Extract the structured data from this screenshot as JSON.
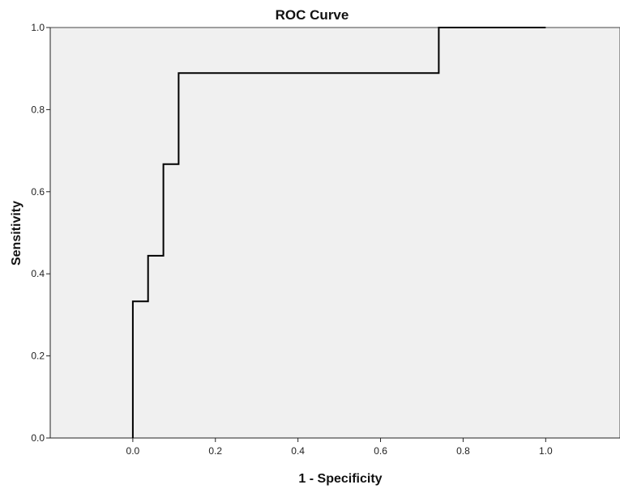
{
  "chart_data": {
    "type": "line",
    "title": "ROC Curve",
    "xlabel": "1 - Specificity",
    "ylabel": "Sensitivity",
    "xlim": [
      -0.2,
      1.18
    ],
    "ylim": [
      0.0,
      1.0
    ],
    "x_ticks": [
      0.0,
      0.2,
      0.4,
      0.6,
      0.8,
      1.0
    ],
    "x_tick_labels": [
      "0.0",
      "0.2",
      "0.4",
      "0.6",
      "0.8",
      "1.0"
    ],
    "y_ticks": [
      0.0,
      0.2,
      0.4,
      0.6,
      0.8,
      1.0
    ],
    "y_tick_labels": [
      "0.0",
      "0.2",
      "0.4",
      "0.6",
      "0.8",
      "1.0"
    ],
    "grid": false,
    "series": [
      {
        "x": [
          0.0,
          0.0,
          0.037,
          0.037,
          0.074,
          0.074,
          0.111,
          0.111,
          0.741,
          0.741,
          1.0
        ],
        "y": [
          0.0,
          0.333,
          0.333,
          0.444,
          0.444,
          0.667,
          0.667,
          0.889,
          0.889,
          1.0,
          1.0
        ],
        "color": "#000000"
      }
    ]
  }
}
